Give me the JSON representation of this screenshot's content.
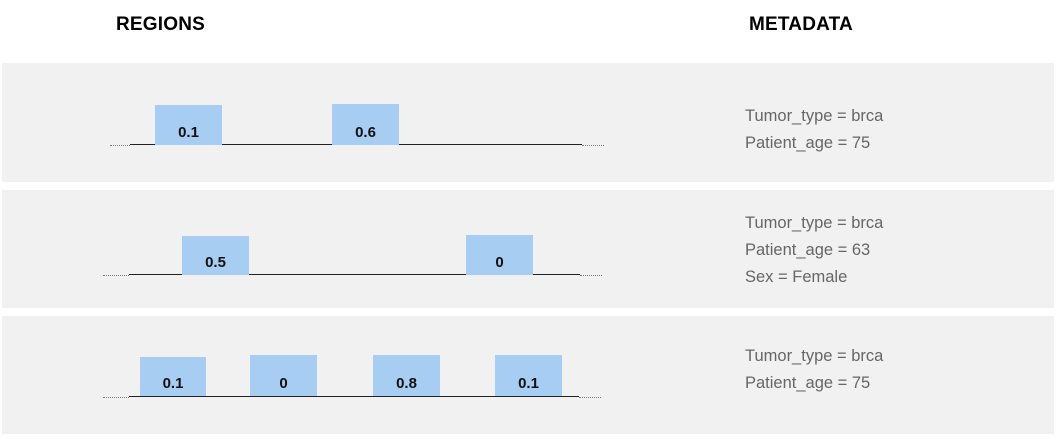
{
  "headers": {
    "regions": "REGIONS",
    "metadata": "METADATA"
  },
  "rows": [
    {
      "regions": [
        {
          "value": "0.1"
        },
        {
          "value": "0.6"
        }
      ],
      "metadata": [
        "Tumor_type = brca",
        "Patient_age = 75"
      ]
    },
    {
      "regions": [
        {
          "value": "0.5"
        },
        {
          "value": "0"
        }
      ],
      "metadata": [
        "Tumor_type = brca",
        "Patient_age = 63",
        "Sex = Female"
      ]
    },
    {
      "regions": [
        {
          "value": "0.1"
        },
        {
          "value": "0"
        },
        {
          "value": "0.8"
        },
        {
          "value": "0.1"
        }
      ],
      "metadata": [
        "Tumor_type = brca",
        "Patient_age = 75"
      ]
    }
  ],
  "colors": {
    "row_background": "#f1f1f1",
    "region_fill": "#a8cdf2",
    "metadata_text": "#666666"
  }
}
